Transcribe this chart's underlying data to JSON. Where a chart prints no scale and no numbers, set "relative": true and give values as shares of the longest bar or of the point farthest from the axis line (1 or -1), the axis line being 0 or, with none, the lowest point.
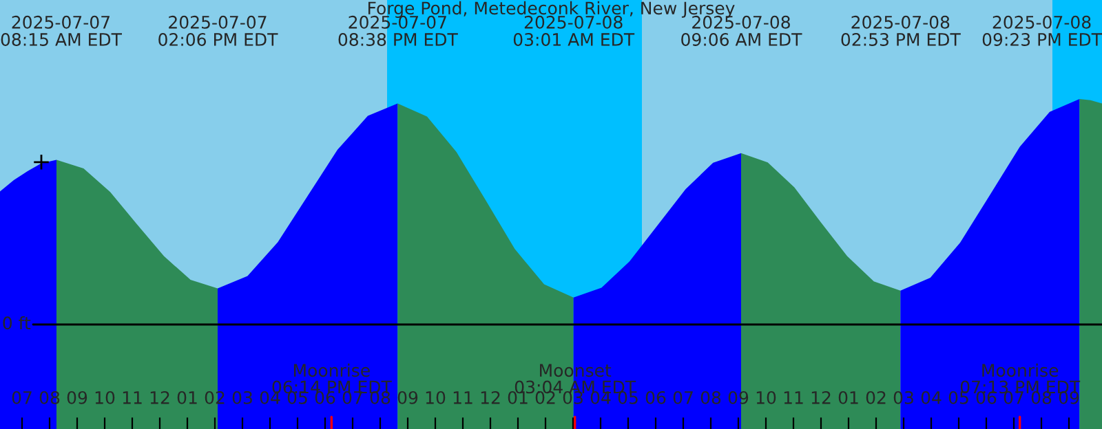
{
  "chart_data": {
    "type": "area",
    "title": "Forge Pond, Metedeconk River, New Jersey",
    "relative": true,
    "xlim": [
      "2025-07-07T06:12",
      "2025-07-08T22:12"
    ],
    "xticks": [
      {
        "value": "2025-07-07T07:00",
        "label": "07"
      },
      {
        "value": "2025-07-07T08:00",
        "label": "08"
      },
      {
        "value": "2025-07-07T09:00",
        "label": "09"
      },
      {
        "value": "2025-07-07T10:00",
        "label": "10"
      },
      {
        "value": "2025-07-07T11:00",
        "label": "11"
      },
      {
        "value": "2025-07-07T12:00",
        "label": "12"
      },
      {
        "value": "2025-07-07T13:00",
        "label": "01"
      },
      {
        "value": "2025-07-07T14:00",
        "label": "02"
      },
      {
        "value": "2025-07-07T15:00",
        "label": "03"
      },
      {
        "value": "2025-07-07T16:00",
        "label": "04"
      },
      {
        "value": "2025-07-07T17:00",
        "label": "05"
      },
      {
        "value": "2025-07-07T18:00",
        "label": "06"
      },
      {
        "value": "2025-07-07T19:00",
        "label": "07"
      },
      {
        "value": "2025-07-07T20:00",
        "label": "08"
      },
      {
        "value": "2025-07-07T21:00",
        "label": "09"
      },
      {
        "value": "2025-07-07T22:00",
        "label": "10"
      },
      {
        "value": "2025-07-07T23:00",
        "label": "11"
      },
      {
        "value": "2025-07-08T00:00",
        "label": "12"
      },
      {
        "value": "2025-07-08T01:00",
        "label": "01"
      },
      {
        "value": "2025-07-08T02:00",
        "label": "02"
      },
      {
        "value": "2025-07-08T03:00",
        "label": "03"
      },
      {
        "value": "2025-07-08T04:00",
        "label": "04"
      },
      {
        "value": "2025-07-08T05:00",
        "label": "05"
      },
      {
        "value": "2025-07-08T06:00",
        "label": "06"
      },
      {
        "value": "2025-07-08T07:00",
        "label": "07"
      },
      {
        "value": "2025-07-08T08:00",
        "label": "08"
      },
      {
        "value": "2025-07-08T09:00",
        "label": "09"
      },
      {
        "value": "2025-07-08T10:00",
        "label": "10"
      },
      {
        "value": "2025-07-08T11:00",
        "label": "11"
      },
      {
        "value": "2025-07-08T12:00",
        "label": "12"
      },
      {
        "value": "2025-07-08T13:00",
        "label": "01"
      },
      {
        "value": "2025-07-08T14:00",
        "label": "02"
      },
      {
        "value": "2025-07-08T15:00",
        "label": "03"
      },
      {
        "value": "2025-07-08T16:00",
        "label": "04"
      },
      {
        "value": "2025-07-08T17:00",
        "label": "05"
      },
      {
        "value": "2025-07-08T18:00",
        "label": "06"
      },
      {
        "value": "2025-07-08T19:00",
        "label": "07"
      },
      {
        "value": "2025-07-08T20:00",
        "label": "08"
      },
      {
        "value": "2025-07-08T21:00",
        "label": "09"
      }
    ],
    "series": [
      {
        "color": "#0000ff",
        "x": [
          "2025-07-07T06:12",
          "2025-07-07T06:42",
          "2025-07-07T07:12",
          "2025-07-07T07:42",
          "2025-07-07T08:15"
        ],
        "values": [
          0.59,
          0.64,
          0.68,
          0.715,
          0.73
        ]
      },
      {
        "color": "#2e8b57",
        "x": [
          "2025-07-07T08:15",
          "2025-07-07T09:14",
          "2025-07-07T10:12",
          "2025-07-07T11:10",
          "2025-07-07T12:09",
          "2025-07-07T13:07",
          "2025-07-07T14:06"
        ],
        "values": [
          0.73,
          0.692,
          0.588,
          0.445,
          0.303,
          0.198,
          0.16
        ]
      },
      {
        "color": "#0000ff",
        "x": [
          "2025-07-07T14:06",
          "2025-07-07T15:11",
          "2025-07-07T16:17",
          "2025-07-07T17:22",
          "2025-07-07T18:27",
          "2025-07-07T19:33",
          "2025-07-07T20:38"
        ],
        "values": [
          0.16,
          0.215,
          0.365,
          0.57,
          0.775,
          0.925,
          0.98
        ]
      },
      {
        "color": "#2e8b57",
        "x": [
          "2025-07-07T20:38",
          "2025-07-07T21:42",
          "2025-07-07T22:46",
          "2025-07-07T23:50",
          "2025-07-08T00:53",
          "2025-07-08T01:57",
          "2025-07-08T03:01"
        ],
        "values": [
          0.98,
          0.922,
          0.765,
          0.55,
          0.335,
          0.178,
          0.12
        ]
      },
      {
        "color": "#0000ff",
        "x": [
          "2025-07-08T03:01",
          "2025-07-08T04:02",
          "2025-07-08T05:03",
          "2025-07-08T06:04",
          "2025-07-08T07:05",
          "2025-07-08T08:05",
          "2025-07-08T09:06"
        ],
        "values": [
          0.12,
          0.163,
          0.28,
          0.44,
          0.6,
          0.717,
          0.76
        ]
      },
      {
        "color": "#2e8b57",
        "x": [
          "2025-07-08T09:06",
          "2025-07-08T10:04",
          "2025-07-08T11:02",
          "2025-07-08T11:59",
          "2025-07-08T12:57",
          "2025-07-08T13:55",
          "2025-07-08T14:53"
        ],
        "values": [
          0.76,
          0.719,
          0.608,
          0.455,
          0.303,
          0.191,
          0.15
        ]
      },
      {
        "color": "#0000ff",
        "x": [
          "2025-07-08T14:53",
          "2025-07-08T15:58",
          "2025-07-08T17:03",
          "2025-07-08T18:08",
          "2025-07-08T19:13",
          "2025-07-08T20:18",
          "2025-07-08T21:23"
        ],
        "values": [
          0.15,
          0.207,
          0.363,
          0.575,
          0.788,
          0.943,
          1.0
        ]
      },
      {
        "color": "#2e8b57",
        "x": [
          "2025-07-08T21:23",
          "2025-07-08T21:47",
          "2025-07-08T22:12"
        ],
        "values": [
          1.0,
          0.995,
          0.98
        ]
      },
      {
        "type": "scatter",
        "marker": "cross",
        "color": "#000000",
        "x": [
          "2025-07-07T07:42"
        ],
        "values": [
          0.72
        ]
      }
    ],
    "bands": [
      {
        "axis": "x",
        "from": "2025-07-07T06:12",
        "to": "2025-07-07T20:15",
        "color": "#87ceeb"
      },
      {
        "axis": "x",
        "from": "2025-07-07T20:15",
        "to": "2025-07-08T05:30",
        "color": "#00bfff"
      },
      {
        "axis": "x",
        "from": "2025-07-08T05:30",
        "to": "2025-07-08T20:24",
        "color": "#87ceeb"
      },
      {
        "axis": "x",
        "from": "2025-07-08T20:24",
        "to": "2025-07-08T22:12",
        "color": "#00bfff"
      }
    ],
    "ref_lines": [
      {
        "axis": "y",
        "value": 0,
        "label": "0 ft",
        "color": "#000000"
      },
      {
        "axis": "x",
        "value": "2025-07-07T18:14",
        "label": "Moonrise\n06:14 PM EDT",
        "color": "#ff0000"
      },
      {
        "axis": "x",
        "value": "2025-07-08T03:04",
        "label": "Moonset\n03:04 AM EDT",
        "color": "#ff0000"
      },
      {
        "axis": "x",
        "value": "2025-07-08T19:13",
        "label": "Moonrise\n07:13 PM EDT",
        "color": "#ff0000"
      }
    ],
    "annotations": [
      "2025-07-07\n08:15 AM EDT",
      "2025-07-07\n02:06 PM EDT",
      "2025-07-07\n08:38 PM EDT",
      "2025-07-08\n03:01 AM EDT",
      "2025-07-08\n09:06 AM EDT",
      "2025-07-08\n02:53 PM EDT",
      "2025-07-08\n09:23 PM EDT"
    ],
    "grid": false,
    "legend": false
  }
}
